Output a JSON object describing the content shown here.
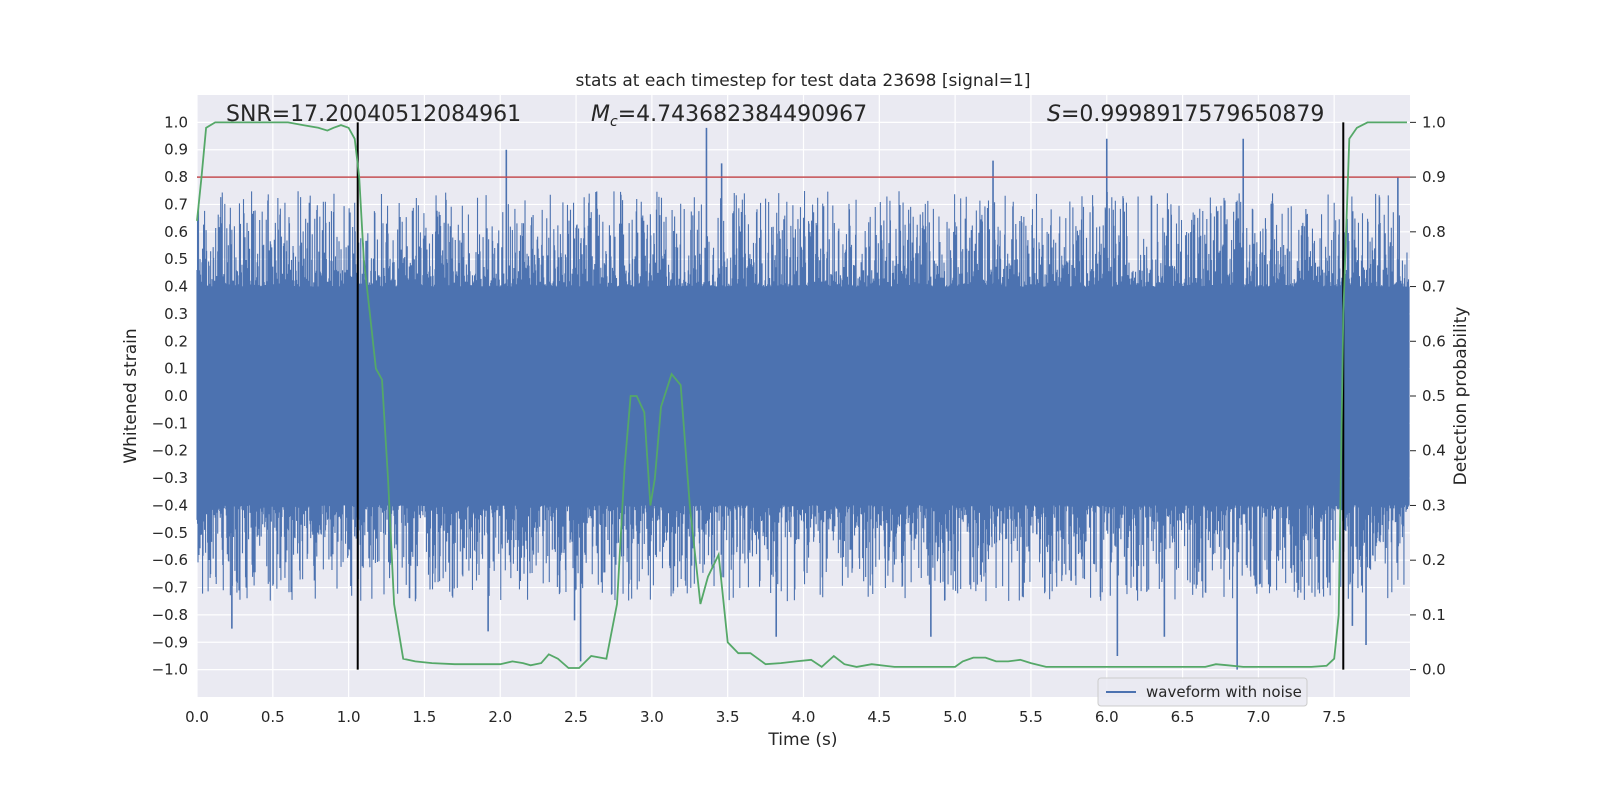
{
  "chart_data": {
    "type": "line",
    "title": "stats at each timestep for test data 23698 [signal=1]",
    "xlabel": "Time (s)",
    "ylabel": "Whitened strain",
    "ylabel_right": "Detection probability",
    "xlim": [
      0.0,
      8.0
    ],
    "ylim": [
      -1.1,
      1.1
    ],
    "ylim_right": [
      -0.05,
      1.05
    ],
    "x_ticks": [
      "0.0",
      "0.5",
      "1.0",
      "1.5",
      "2.0",
      "2.5",
      "3.0",
      "3.5",
      "4.0",
      "4.5",
      "5.0",
      "5.5",
      "6.0",
      "6.5",
      "7.0",
      "7.5"
    ],
    "y_ticks": [
      "1.0",
      "0.9",
      "0.8",
      "0.7",
      "0.6",
      "0.5",
      "0.4",
      "0.3",
      "0.2",
      "0.1",
      "0.0",
      "-0.1",
      "-0.2",
      "-0.3",
      "-0.4",
      "-0.5",
      "-0.6",
      "-0.7",
      "-0.8",
      "-0.9",
      "-1.0"
    ],
    "y_ticks_right": [
      "1.0",
      "0.9",
      "0.8",
      "0.7",
      "0.6",
      "0.5",
      "0.4",
      "0.3",
      "0.2",
      "0.1",
      "0.0"
    ],
    "grid": true,
    "legend": {
      "placement": "lower-right",
      "entries": [
        "waveform with noise"
      ]
    },
    "annotations": {
      "snr": "SNR=17.20040512084961",
      "mc_symbol": "M",
      "mc_sub": "c",
      "mc_value": "=4.743682384490967",
      "s_symbol": "S",
      "s_value": "=0.9998917579650879"
    },
    "threshold_right": 0.9,
    "vertical_markers_x": [
      1.06,
      7.56
    ],
    "vertical_markers_right_range": [
      0.0,
      1.0
    ],
    "series": [
      {
        "name": "waveform with noise",
        "axis": "left",
        "description_envelope": {
          "core_band": [
            -0.4,
            0.4
          ],
          "peak_range": [
            -1.0,
            1.0
          ]
        },
        "spikes": [
          {
            "x": 2.04,
            "y": 0.9
          },
          {
            "x": 3.36,
            "y": 0.98
          },
          {
            "x": 3.46,
            "y": 0.85
          },
          {
            "x": 5.25,
            "y": 0.86
          },
          {
            "x": 6.0,
            "y": 0.94
          },
          {
            "x": 6.9,
            "y": 0.94
          },
          {
            "x": 7.92,
            "y": 0.8
          },
          {
            "x": 2.49,
            "y": -0.82
          },
          {
            "x": 2.53,
            "y": -0.97
          },
          {
            "x": 6.07,
            "y": -0.95
          },
          {
            "x": 6.86,
            "y": -1.0
          },
          {
            "x": 7.71,
            "y": -0.91
          },
          {
            "x": 3.82,
            "y": -0.88
          },
          {
            "x": 4.84,
            "y": -0.88
          },
          {
            "x": 1.92,
            "y": -0.86
          },
          {
            "x": 6.38,
            "y": -0.88
          },
          {
            "x": 7.62,
            "y": -0.84
          },
          {
            "x": 0.23,
            "y": -0.85
          }
        ]
      },
      {
        "name": "",
        "axis": "right",
        "x": [
          0.0,
          0.03,
          0.06,
          0.12,
          0.2,
          0.3,
          0.4,
          0.5,
          0.6,
          0.7,
          0.8,
          0.86,
          0.9,
          0.95,
          1.0,
          1.04,
          1.07,
          1.1,
          1.14,
          1.18,
          1.22,
          1.26,
          1.3,
          1.36,
          1.44,
          1.55,
          1.7,
          1.85,
          2.0,
          2.08,
          2.15,
          2.2,
          2.27,
          2.32,
          2.38,
          2.45,
          2.52,
          2.6,
          2.7,
          2.77,
          2.82,
          2.86,
          2.9,
          2.95,
          2.99,
          3.02,
          3.06,
          3.13,
          3.19,
          3.25,
          3.32,
          3.37,
          3.44,
          3.5,
          3.57,
          3.65,
          3.75,
          3.85,
          3.95,
          4.05,
          4.12,
          4.2,
          4.27,
          4.35,
          4.45,
          4.6,
          4.75,
          4.9,
          5.0,
          5.05,
          5.12,
          5.2,
          5.27,
          5.35,
          5.43,
          5.5,
          5.6,
          5.75,
          5.9,
          6.05,
          6.2,
          6.35,
          6.5,
          6.65,
          6.72,
          6.8,
          6.9,
          7.05,
          7.2,
          7.35,
          7.45,
          7.5,
          7.53,
          7.56,
          7.6,
          7.65,
          7.72,
          7.8,
          7.9,
          7.98
        ],
        "values": [
          0.82,
          0.9,
          0.99,
          1.0,
          1.0,
          1.0,
          1.0,
          1.0,
          1.0,
          0.995,
          0.99,
          0.985,
          0.99,
          0.995,
          0.99,
          0.97,
          0.9,
          0.75,
          0.65,
          0.55,
          0.53,
          0.35,
          0.12,
          0.02,
          0.015,
          0.012,
          0.01,
          0.01,
          0.01,
          0.015,
          0.012,
          0.008,
          0.012,
          0.028,
          0.02,
          0.003,
          0.003,
          0.025,
          0.02,
          0.12,
          0.37,
          0.5,
          0.5,
          0.47,
          0.3,
          0.35,
          0.48,
          0.54,
          0.52,
          0.3,
          0.12,
          0.17,
          0.21,
          0.05,
          0.03,
          0.03,
          0.01,
          0.012,
          0.015,
          0.018,
          0.005,
          0.025,
          0.01,
          0.005,
          0.01,
          0.005,
          0.005,
          0.005,
          0.005,
          0.015,
          0.022,
          0.022,
          0.015,
          0.015,
          0.018,
          0.012,
          0.005,
          0.005,
          0.005,
          0.005,
          0.005,
          0.005,
          0.005,
          0.005,
          0.01,
          0.008,
          0.005,
          0.005,
          0.005,
          0.005,
          0.007,
          0.02,
          0.1,
          0.65,
          0.97,
          0.99,
          1.0,
          1.0,
          1.0,
          1.0
        ]
      }
    ]
  },
  "colors": {
    "axes_bg": "#eaeaf2",
    "grid": "#ffffff",
    "waveform": "#4c72b0",
    "probability": "#55a868",
    "threshold": "#c44e52",
    "marker": "#000000"
  }
}
